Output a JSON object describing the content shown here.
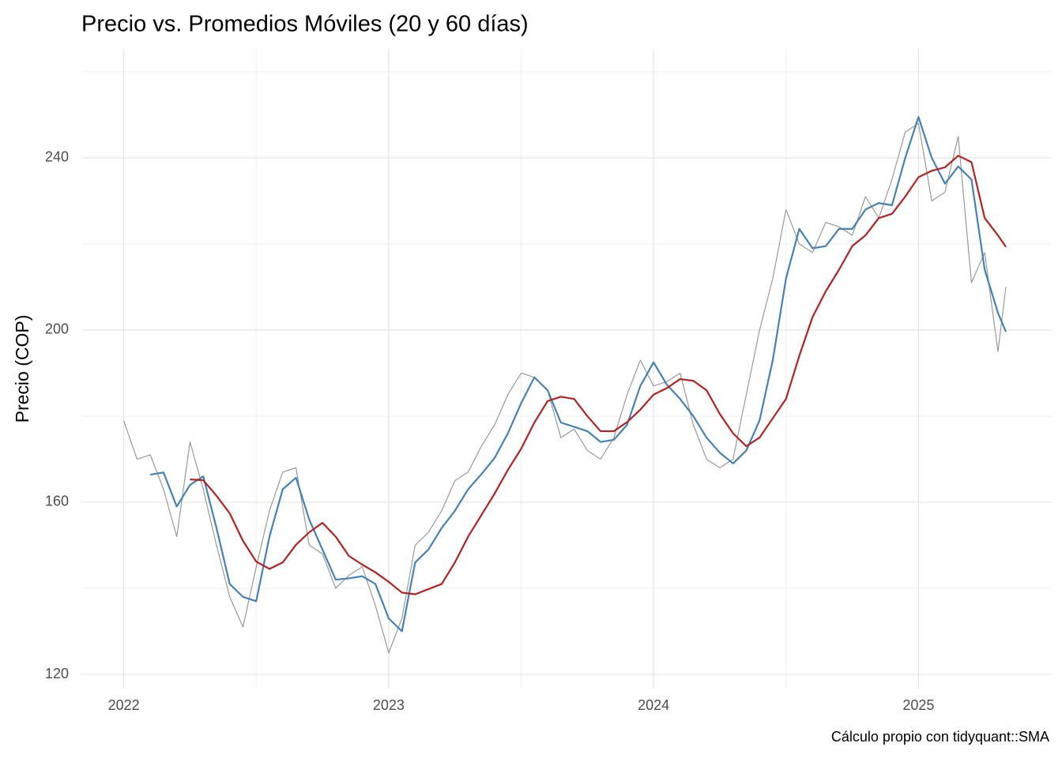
{
  "chart_data": {
    "type": "line",
    "title": "Precio vs. Promedios Móviles (20 y 60 días)",
    "y_label": "Precio (COP)",
    "caption": "Cálculo propio con tidyquant::SMA",
    "x": [
      2022.0,
      2022.05,
      2022.1,
      2022.15,
      2022.2,
      2022.25,
      2022.3,
      2022.35,
      2022.4,
      2022.45,
      2022.5,
      2022.55,
      2022.6,
      2022.65,
      2022.7,
      2022.75,
      2022.8,
      2022.85,
      2022.9,
      2022.95,
      2023.0,
      2023.05,
      2023.1,
      2023.15,
      2023.2,
      2023.25,
      2023.3,
      2023.35,
      2023.4,
      2023.45,
      2023.5,
      2023.55,
      2023.6,
      2023.65,
      2023.7,
      2023.75,
      2023.8,
      2023.85,
      2023.9,
      2023.95,
      2024.0,
      2024.05,
      2024.1,
      2024.15,
      2024.2,
      2024.25,
      2024.3,
      2024.35,
      2024.4,
      2024.45,
      2024.5,
      2024.55,
      2024.6,
      2024.65,
      2024.7,
      2024.75,
      2024.8,
      2024.85,
      2024.9,
      2024.95,
      2025.0,
      2025.05,
      2025.1,
      2025.15,
      2025.2,
      2025.25,
      2025.3,
      2025.33
    ],
    "series": [
      {
        "color": "#999999",
        "width": 1.2,
        "values": [
          178.9,
          170,
          171,
          163,
          152,
          174,
          163,
          150,
          138,
          131,
          145,
          158,
          167,
          168,
          150,
          148,
          140,
          143,
          145,
          136,
          125,
          133,
          150,
          153,
          158,
          165,
          167,
          173,
          178,
          185,
          190,
          189,
          186,
          175,
          177,
          172,
          170,
          175,
          185,
          193,
          187,
          188,
          190,
          178,
          170,
          168,
          170,
          185,
          200,
          212,
          228,
          220,
          218,
          225,
          224,
          222,
          231,
          226,
          235,
          246,
          248,
          230,
          232,
          245,
          211,
          218,
          195,
          210
        ]
      },
      {
        "color": "#4682b4",
        "width": 2.2,
        "values": [
          null,
          null,
          166.4,
          166.9,
          159,
          164,
          166,
          154,
          141,
          138,
          137,
          152,
          163,
          165.7,
          156,
          149,
          142,
          142.3,
          142.8,
          141,
          133,
          130,
          146,
          149,
          154,
          158,
          163,
          166.5,
          170.3,
          176,
          183,
          189,
          186,
          178.5,
          177.5,
          176.5,
          174,
          174.5,
          178,
          187,
          192.5,
          187.3,
          184,
          180,
          175,
          171.5,
          169,
          172,
          179,
          193,
          212,
          223.5,
          219,
          219.5,
          223.5,
          223.5,
          228,
          229.5,
          229,
          240,
          249.5,
          240,
          234,
          238,
          235,
          214,
          204,
          199.6
        ]
      },
      {
        "color": "#b22222",
        "width": 2.2,
        "values": [
          null,
          null,
          null,
          null,
          null,
          165.3,
          165.1,
          161.5,
          157.4,
          151,
          146.2,
          144.5,
          146,
          150.1,
          153,
          155.2,
          152,
          147.5,
          145.5,
          143.7,
          141.5,
          139,
          138.6,
          139.8,
          141,
          146,
          152,
          157,
          162,
          167.5,
          172.4,
          178.5,
          183.5,
          184.5,
          184,
          180,
          176.5,
          176.5,
          178.6,
          181.5,
          185,
          186.5,
          188.6,
          188.2,
          186,
          180.5,
          176,
          173,
          175,
          179.5,
          184,
          194,
          203,
          209,
          214,
          219.5,
          222,
          226,
          227,
          231,
          235.5,
          237,
          237.8,
          240.5,
          239,
          226,
          222,
          219.3
        ]
      }
    ],
    "xlim": [
      2021.84,
      2025.5
    ],
    "xticks": [
      2022,
      2023,
      2024,
      2025
    ],
    "ylim": [
      116.7,
      265.3
    ],
    "yticks": [
      120,
      160,
      200,
      240
    ],
    "grid": true
  }
}
